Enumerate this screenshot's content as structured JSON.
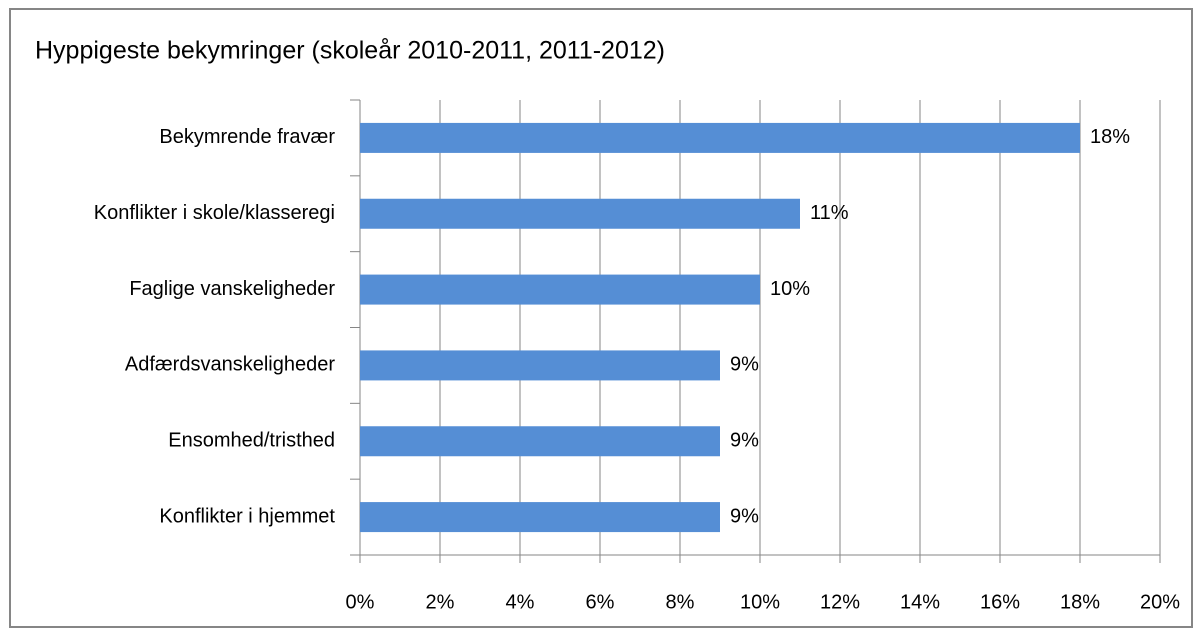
{
  "chart_data": {
    "type": "bar",
    "orientation": "horizontal",
    "title": "Hyppigeste bekymringer (skoleår 2010-2011, 2011-2012)",
    "categories": [
      "Bekymrende fravær",
      "Konflikter i skole/klasseregi",
      "Faglige vanskeligheder",
      "Adfærdsvanskeligheder",
      "Ensomhed/tristhed",
      "Konflikter i hjemmet"
    ],
    "values": [
      18,
      11,
      10,
      9,
      9,
      9
    ],
    "value_labels": [
      "18%",
      "11%",
      "10%",
      "9%",
      "9%",
      "9%"
    ],
    "color": "#558ed5",
    "xlim": [
      0,
      20
    ],
    "xticks": [
      {
        "value": 0,
        "label": "0%"
      },
      {
        "value": 2,
        "label": "2%"
      },
      {
        "value": 4,
        "label": "4%"
      },
      {
        "value": 6,
        "label": "6%"
      },
      {
        "value": 8,
        "label": "8%"
      },
      {
        "value": 10,
        "label": "10%"
      },
      {
        "value": 12,
        "label": "12%"
      },
      {
        "value": 14,
        "label": "14%"
      },
      {
        "value": 16,
        "label": "16%"
      },
      {
        "value": 18,
        "label": "18%"
      },
      {
        "value": 20,
        "label": "20%"
      }
    ],
    "grid": true
  }
}
